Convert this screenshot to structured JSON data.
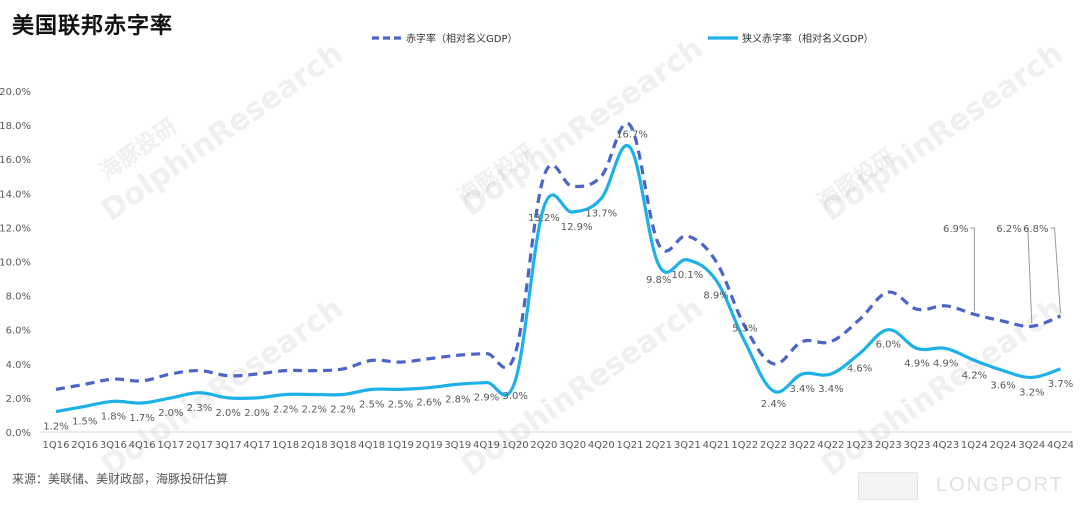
{
  "page": {
    "title": "美国联邦赤字率",
    "source": "来源：美联储、美财政部，海豚投研估算",
    "watermark_en": "DolphinResearch",
    "watermark_cn": "海豚投研",
    "brand": "LONGPORT"
  },
  "colors": {
    "dashed": "#4a64c8",
    "solid": "#1eb1e8",
    "axis": "#595959",
    "grid": "#d9d9d9"
  },
  "chart_data": {
    "type": "line",
    "title": "美国联邦赤字率",
    "ylim": [
      0,
      20
    ],
    "yticks": [
      "0.0%",
      "2.0%",
      "4.0%",
      "6.0%",
      "8.0%",
      "10.0%",
      "12.0%",
      "14.0%",
      "16.0%",
      "18.0%",
      "20.0%"
    ],
    "legend_position": "top",
    "categories": [
      "1Q16",
      "2Q16",
      "3Q16",
      "4Q16",
      "1Q17",
      "2Q17",
      "3Q17",
      "4Q17",
      "1Q18",
      "2Q18",
      "3Q18",
      "4Q18",
      "1Q19",
      "2Q19",
      "3Q19",
      "4Q19",
      "1Q20",
      "2Q20",
      "3Q20",
      "4Q20",
      "1Q21",
      "2Q21",
      "3Q21",
      "4Q21",
      "1Q22",
      "2Q22",
      "3Q22",
      "4Q22",
      "1Q23",
      "2Q23",
      "3Q23",
      "4Q23",
      "1Q24",
      "2Q24",
      "3Q24",
      "4Q24"
    ],
    "series": [
      {
        "name": "赤字率（相对名义GDP）",
        "style": "dashed",
        "values": [
          2.5,
          2.8,
          3.1,
          3.0,
          3.4,
          3.6,
          3.3,
          3.4,
          3.6,
          3.6,
          3.7,
          4.2,
          4.1,
          4.3,
          4.5,
          4.6,
          4.6,
          15.0,
          14.4,
          15.0,
          18.0,
          11.0,
          11.5,
          10.0,
          6.2,
          4.0,
          5.3,
          5.3,
          6.6,
          8.2,
          7.2,
          7.4,
          6.9,
          6.5,
          6.2,
          6.8
        ],
        "labels": [
          {
            "index": 32,
            "text": "6.9%"
          },
          {
            "index": 34,
            "text": "6.2%"
          },
          {
            "index": 35,
            "text": "6.8%"
          }
        ]
      },
      {
        "name": "狭义赤字率（相对名义GDP）",
        "style": "solid",
        "values": [
          1.2,
          1.5,
          1.8,
          1.7,
          2.0,
          2.3,
          2.0,
          2.0,
          2.2,
          2.2,
          2.2,
          2.5,
          2.5,
          2.6,
          2.8,
          2.9,
          3.0,
          13.2,
          12.9,
          13.7,
          16.7,
          9.8,
          10.1,
          8.9,
          5.3,
          2.4,
          3.4,
          3.4,
          4.6,
          6.0,
          4.9,
          4.9,
          4.2,
          3.6,
          3.2,
          3.7
        ],
        "labels": [
          "1.2%",
          "1.5%",
          "1.8%",
          "1.7%",
          "2.0%",
          "2.3%",
          "2.0%",
          "2.0%",
          "2.2%",
          "2.2%",
          "2.2%",
          "2.5%",
          "2.5%",
          "2.6%",
          "2.8%",
          "2.9%",
          "3.0%",
          "13.2%",
          "12.9%",
          "13.7%",
          "16.7%",
          "9.8%",
          "10.1%",
          "8.9%",
          "5.3%",
          "2.4%",
          "3.4%",
          "3.4%",
          "4.6%",
          "6.0%",
          "4.9%",
          "4.9%",
          "4.2%",
          "3.6%",
          "3.2%",
          "3.7%"
        ]
      }
    ]
  }
}
